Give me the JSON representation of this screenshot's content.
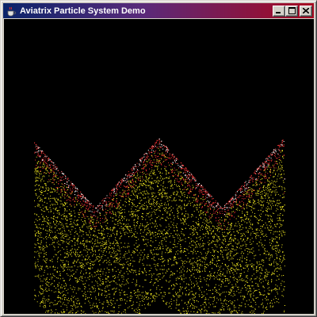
{
  "window": {
    "title": "Aviatrix Particle System Demo",
    "icon": "java-cup-icon"
  },
  "title_buttons": {
    "minimize": "minimize-icon",
    "maximize": "maximize-icon",
    "close": "close-icon"
  },
  "colors": {
    "titlebar_start": "#0a246a",
    "titlebar_end": "#a6081f",
    "background": "#000000",
    "particle_top": "#e03030",
    "particle_bottom": "#e8e020"
  }
}
